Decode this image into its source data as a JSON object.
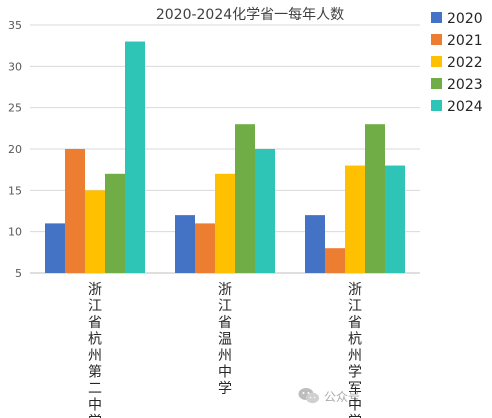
{
  "chart_data": {
    "type": "bar",
    "title": "2020-2024化学省一每年人数",
    "categories": [
      "浙江省杭州第二中学",
      "浙江省温州中学",
      "浙江省杭州学军中学"
    ],
    "series": [
      {
        "name": "2020",
        "color": "#4472C4",
        "values": [
          11,
          12,
          12
        ]
      },
      {
        "name": "2021",
        "color": "#ED7D31",
        "values": [
          20,
          11,
          8
        ]
      },
      {
        "name": "2022",
        "color": "#FFC000",
        "values": [
          15,
          17,
          18
        ]
      },
      {
        "name": "2023",
        "color": "#70AD47",
        "values": [
          17,
          23,
          23
        ]
      },
      {
        "name": "2024",
        "color": "#2EC4B6",
        "values": [
          33,
          20,
          18
        ]
      }
    ],
    "ylim": [
      5,
      35
    ],
    "yticks": [
      "5",
      "10",
      "15",
      "20",
      "25",
      "30",
      "35"
    ],
    "grid": true,
    "legend": "right"
  },
  "watermark": {
    "text": "公众号",
    "icon": "wechat-icon"
  }
}
